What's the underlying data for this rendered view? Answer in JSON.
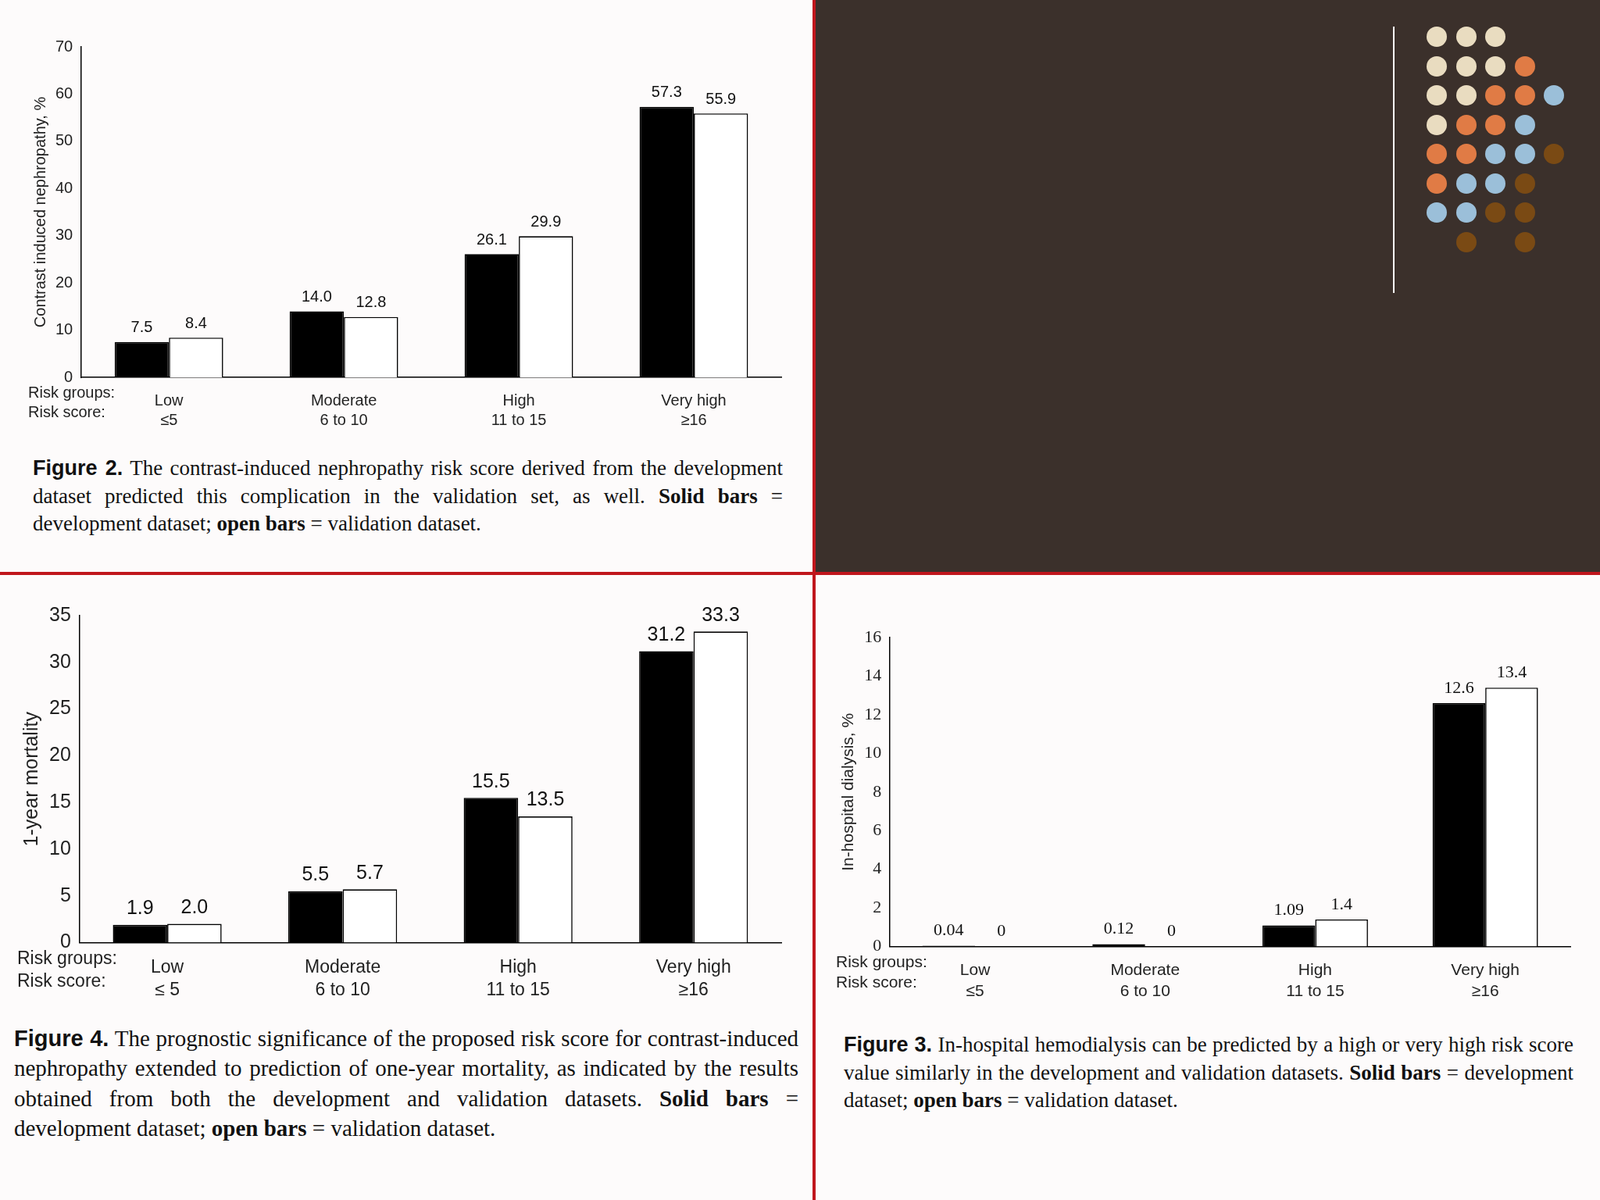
{
  "chart_data": [
    {
      "type": "bar",
      "y_label": "Contrast induced nephropathy, %",
      "category_heading": "Risk groups:",
      "sublabel_heading": "Risk score:",
      "categories": [
        "Low",
        "Moderate",
        "High",
        "Very high"
      ],
      "category_sublabels": [
        "≤5",
        "6 to 10",
        "11 to 15",
        "≥16"
      ],
      "series": [
        {
          "color": "#000000",
          "values": [
            7.5,
            14.0,
            26.1,
            57.3
          ],
          "value_labels": [
            "7.5",
            "14.0",
            "26.1",
            "57.3"
          ]
        },
        {
          "color": "#ffffff",
          "values": [
            8.4,
            12.8,
            29.9,
            55.9
          ],
          "value_labels": [
            "8.4",
            "12.8",
            "29.9",
            "55.9"
          ]
        }
      ],
      "ylim": [
        0,
        70
      ],
      "yticks": [
        0,
        10,
        20,
        30,
        40,
        50,
        60,
        70
      ],
      "grid": false,
      "data_labels": true,
      "caption_parts": [
        {
          "text": "Figure 2.",
          "bold": true
        },
        {
          "text": " The contrast-induced nephropathy risk score derived from the development dataset predicted this complication in the validation set, as well. ",
          "bold": false
        },
        {
          "text": "Solid bars",
          "bold": true
        },
        {
          "text": " = development dataset; ",
          "bold": false
        },
        {
          "text": "open bars",
          "bold": true
        },
        {
          "text": " = validation dataset.",
          "bold": false
        }
      ]
    },
    {
      "type": "bar",
      "y_label": "1-year mortality",
      "category_heading": "Risk groups:",
      "sublabel_heading": "Risk score:",
      "categories": [
        "Low",
        "Moderate",
        "High",
        "Very high"
      ],
      "category_sublabels": [
        "≤ 5",
        "6 to 10",
        "11 to 15",
        "≥16"
      ],
      "series": [
        {
          "color": "#000000",
          "values": [
            1.9,
            5.5,
            15.5,
            31.2
          ],
          "value_labels": [
            "1.9",
            "5.5",
            "15.5",
            "31.2"
          ]
        },
        {
          "color": "#ffffff",
          "values": [
            2.0,
            5.7,
            13.5,
            33.3
          ],
          "value_labels": [
            "2.0",
            "5.7",
            "13.5",
            "33.3"
          ]
        }
      ],
      "ylim": [
        0,
        35
      ],
      "yticks": [
        0,
        5,
        10,
        15,
        20,
        25,
        30,
        35
      ],
      "grid": false,
      "data_labels": true,
      "caption_parts": [
        {
          "text": "Figure 4.",
          "bold": true
        },
        {
          "text": " The prognostic significance of the proposed risk score for contrast-induced nephropathy extended to prediction of one-year mortality, as indicated by the results obtained from both the development and validation datasets. ",
          "bold": false
        },
        {
          "text": "Solid bars",
          "bold": true
        },
        {
          "text": " = development dataset; ",
          "bold": false
        },
        {
          "text": "open bars",
          "bold": true
        },
        {
          "text": " = validation dataset.",
          "bold": false
        }
      ]
    },
    {
      "type": "bar",
      "y_label": "In-hospital dialysis, %",
      "category_heading": "Risk groups:",
      "sublabel_heading": "Risk score:",
      "categories": [
        "Low",
        "Moderate",
        "High",
        "Very high"
      ],
      "category_sublabels": [
        "≤5",
        "6 to 10",
        "11 to 15",
        "≥16"
      ],
      "series": [
        {
          "color": "#000000",
          "values": [
            0.04,
            0.12,
            1.09,
            12.6
          ],
          "value_labels": [
            "0.04",
            "0.12",
            "1.09",
            "12.6"
          ]
        },
        {
          "color": "#ffffff",
          "values": [
            0,
            0,
            1.4,
            13.4
          ],
          "value_labels": [
            "0",
            "0",
            "1.4",
            "13.4"
          ]
        }
      ],
      "ylim": [
        0,
        16
      ],
      "yticks": [
        0,
        2,
        4,
        6,
        8,
        10,
        12,
        14,
        16
      ],
      "grid": false,
      "data_labels": true,
      "caption_parts": [
        {
          "text": "Figure 3.",
          "bold": true
        },
        {
          "text": " In-hospital hemodialysis can be predicted by a high or very high risk score value similarly in the development and validation datasets. ",
          "bold": false
        },
        {
          "text": "Solid bars",
          "bold": true
        },
        {
          "text": " = development dataset; ",
          "bold": false
        },
        {
          "text": "open bars",
          "bold": true
        },
        {
          "text": " = validation dataset.",
          "bold": false
        }
      ]
    }
  ]
}
